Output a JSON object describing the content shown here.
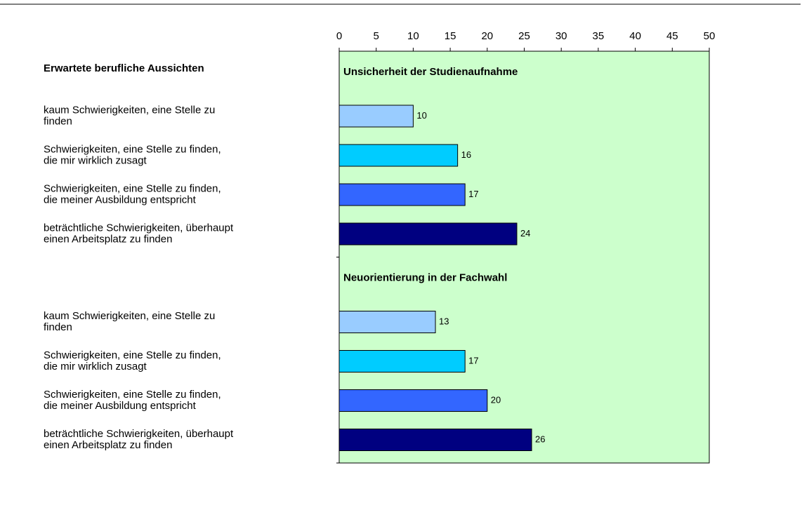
{
  "chart_data": {
    "type": "bar",
    "title": "Erwartete berufliche Aussichten",
    "xlim": [
      0,
      50
    ],
    "xticks": [
      0,
      5,
      10,
      15,
      20,
      25,
      30,
      35,
      40,
      45,
      50
    ],
    "plot_background": "#ccffcc",
    "colors": [
      "#99ccff",
      "#00ccff",
      "#3366ff",
      "#000080"
    ],
    "groups": [
      {
        "title": "Unsicherheit der Studienaufnahme",
        "categories": [
          [
            "kaum Schwierigkeiten, eine Stelle zu",
            "finden"
          ],
          [
            "Schwierigkeiten, eine Stelle zu finden,",
            "die mir wirklich zusagt"
          ],
          [
            "Schwierigkeiten, eine Stelle zu finden,",
            "die meiner Ausbildung entspricht"
          ],
          [
            "beträchtliche Schwierigkeiten, überhaupt",
            "einen Arbeitsplatz zu finden"
          ]
        ],
        "values": [
          10,
          16,
          17,
          24
        ]
      },
      {
        "title": "Neuorientierung in der Fachwahl",
        "categories": [
          [
            "kaum Schwierigkeiten, eine Stelle zu",
            "finden"
          ],
          [
            "Schwierigkeiten, eine Stelle zu finden,",
            "die mir wirklich zusagt"
          ],
          [
            "Schwierigkeiten, eine Stelle zu finden,",
            "die meiner Ausbildung entspricht"
          ],
          [
            "beträchtliche Schwierigkeiten, überhaupt",
            "einen Arbeitsplatz zu finden"
          ]
        ],
        "values": [
          13,
          17,
          20,
          26
        ]
      }
    ]
  }
}
